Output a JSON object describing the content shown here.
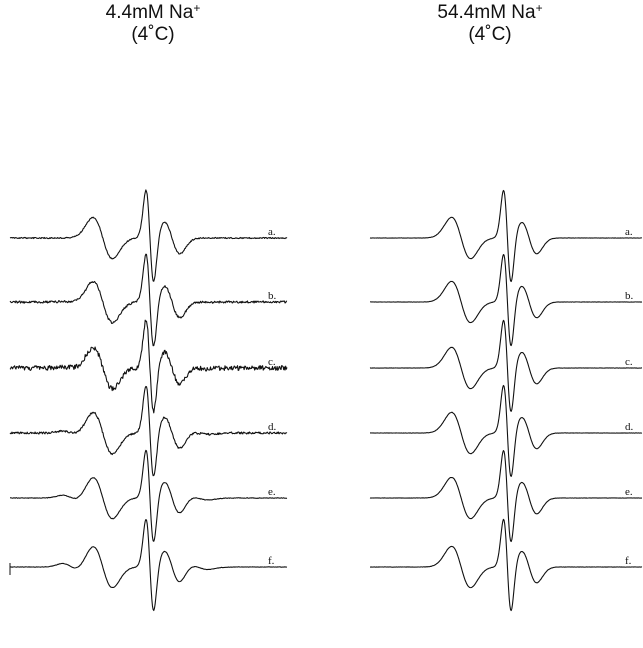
{
  "panels": [
    {
      "title_line1": "4.4mM Na",
      "title_sup": "+",
      "title_line2": "(4˚C)",
      "spectra": [
        {
          "label": "a.",
          "noise": 0.6,
          "shoulder": 0.0
        },
        {
          "label": "b.",
          "noise": 1.1,
          "shoulder": 0.05
        },
        {
          "label": "c.",
          "noise": 2.4,
          "shoulder": 0.12
        },
        {
          "label": "d.",
          "noise": 1.0,
          "shoulder": 0.22
        },
        {
          "label": "e.",
          "noise": 0.3,
          "shoulder": 0.32
        },
        {
          "label": "f.",
          "noise": 0.2,
          "shoulder": 0.4
        }
      ]
    },
    {
      "title_line1": "54.4mM Na",
      "title_sup": "+",
      "title_line2": "(4˚C)",
      "spectra": [
        {
          "label": "a.",
          "noise": 0.15,
          "shoulder": 0.0
        },
        {
          "label": "b.",
          "noise": 0.15,
          "shoulder": 0.0
        },
        {
          "label": "c.",
          "noise": 0.15,
          "shoulder": 0.0
        },
        {
          "label": "d.",
          "noise": 0.15,
          "shoulder": 0.0
        },
        {
          "label": "e.",
          "noise": 0.15,
          "shoulder": 0.0
        },
        {
          "label": "f.",
          "noise": 0.15,
          "shoulder": 0.0
        }
      ]
    }
  ]
}
